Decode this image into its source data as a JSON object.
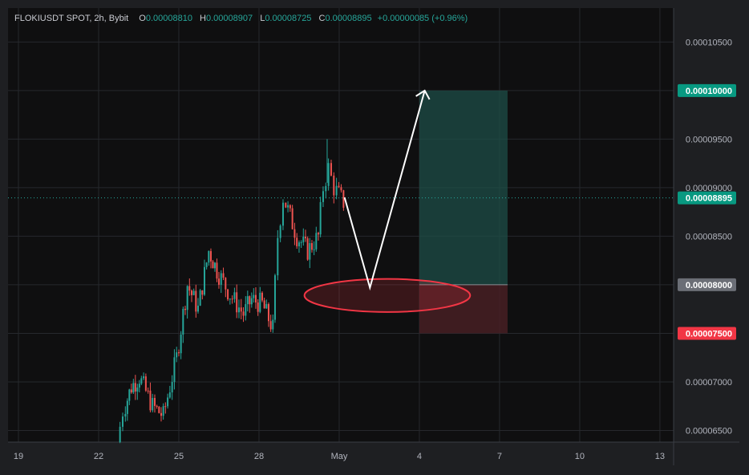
{
  "header": {
    "symbol": "FLOKIUSDT SPOT, 2h, Bybit",
    "open_label": "O",
    "open_value": "0.00008810",
    "high_label": "H",
    "high_value": "0.00008907",
    "low_label": "L",
    "low_value": "0.00008725",
    "close_label": "C",
    "close_value": "0.00008895",
    "change": "+0.00000085 (+0.96%)"
  },
  "colors": {
    "up": "#26a69a",
    "down": "#ef5350",
    "background": "#0f0f10",
    "grid": "#26282d",
    "text": "#b2b5be",
    "target_zone": "#1d4d47",
    "stop_zone": "#4a1f24",
    "entry_label": "#6b6e76",
    "stop_label": "#f23645",
    "tp_label": "#089981"
  },
  "chart_data": {
    "type": "candlestick",
    "symbol": "FLOKIUSDT",
    "ylim": [
      6.38e-05,
      0.0001085
    ],
    "y_ticks": [
      "0.00010500",
      "0.00009500",
      "0.00009000",
      "0.00008500",
      "0.00007000",
      "0.00006500"
    ],
    "x_ticks": [
      {
        "day": 19,
        "label": "19"
      },
      {
        "day": 22,
        "label": "22"
      },
      {
        "day": 25,
        "label": "25"
      },
      {
        "day": 28,
        "label": "28"
      },
      {
        "day": 31,
        "label": "May"
      },
      {
        "day": 34,
        "label": "4"
      },
      {
        "day": 37,
        "label": "7"
      },
      {
        "day": 40,
        "label": "10"
      },
      {
        "day": 43,
        "label": "13"
      }
    ],
    "price_labels": [
      {
        "name": "take-profit",
        "text": "0.00010000",
        "value": 0.0001
      },
      {
        "name": "current-price",
        "text": "0.00008895",
        "value": 8.895e-05
      },
      {
        "name": "entry",
        "text": "0.00008000",
        "value": 8e-05
      },
      {
        "name": "stop-loss",
        "text": "0.00007500",
        "value": 7.5e-05
      }
    ],
    "anchors": [
      [
        22.8,
        6.38e-05
      ],
      [
        23.0,
        6.7e-05
      ],
      [
        23.3,
        6.95e-05
      ],
      [
        23.6,
        7.05e-05
      ],
      [
        24.1,
        6.75e-05
      ],
      [
        24.5,
        6.65e-05
      ],
      [
        25.0,
        7.25e-05
      ],
      [
        25.4,
        8e-05
      ],
      [
        25.8,
        7.75e-05
      ],
      [
        26.2,
        8.35e-05
      ],
      [
        26.5,
        8.15e-05
      ],
      [
        27.0,
        7.9e-05
      ],
      [
        27.5,
        7.7e-05
      ],
      [
        27.8,
        7.85e-05
      ],
      [
        28.2,
        7.8e-05
      ],
      [
        28.6,
        7.55e-05
      ],
      [
        28.8,
        8.5e-05
      ],
      [
        29.0,
        8.9e-05
      ],
      [
        29.5,
        8.5e-05
      ],
      [
        29.9,
        8.35e-05
      ],
      [
        30.3,
        8.5e-05
      ],
      [
        30.5,
        9e-05
      ],
      [
        30.7,
        9.2e-05
      ],
      [
        30.9,
        9e-05
      ],
      [
        31.25,
        8.85e-05
      ]
    ],
    "position": {
      "entry": 8e-05,
      "stop": 7.5e-05,
      "target": 0.0001,
      "x_start": 34.0,
      "x_end": 37.3
    },
    "projection_path": [
      [
        31.2,
        8.9e-05
      ],
      [
        32.15,
        7.97e-05
      ],
      [
        34.2,
        0.0001
      ]
    ],
    "highlight_ellipse": {
      "center": [
        32.8,
        7.89e-05
      ],
      "rx_days": 3.1,
      "ry_price": 1.7e-06
    }
  }
}
